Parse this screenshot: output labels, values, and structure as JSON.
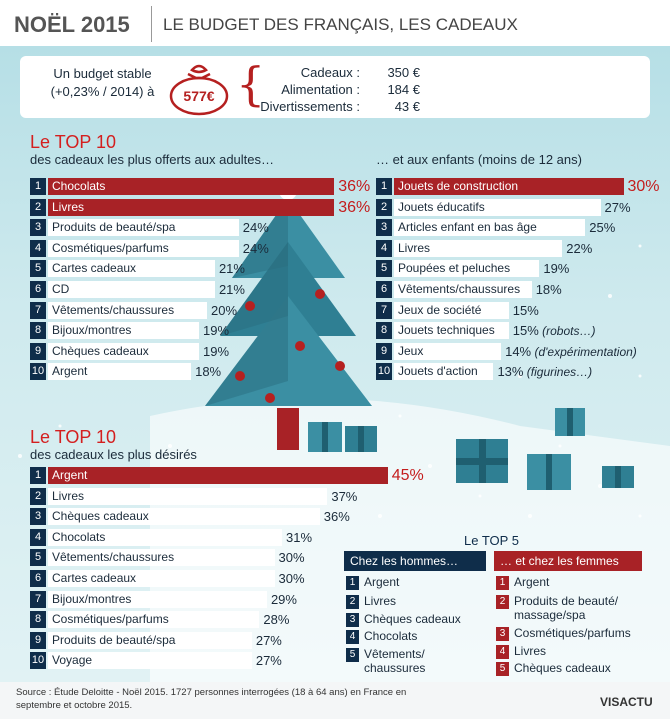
{
  "header": {
    "title": "NOËL 2015",
    "subtitle": "LE BUDGET DES FRANÇAIS, LES CADEAUX"
  },
  "budget": {
    "label": "Un budget stable\n(+0,23% / 2014) à",
    "amount": "577€",
    "items": [
      {
        "label": "Cadeaux :",
        "value": "350 €"
      },
      {
        "label": "Alimentation :",
        "value": "184 €"
      },
      {
        "label": "Divertissements :",
        "value": "43 €"
      }
    ]
  },
  "adults": {
    "title": "Le TOP 10",
    "subtitle": "des cadeaux les plus offerts aux adultes…",
    "items": [
      {
        "rank": "1",
        "label": "Chocolats",
        "value": 36,
        "display": "36%"
      },
      {
        "rank": "2",
        "label": "Livres",
        "value": 36,
        "display": "36%"
      },
      {
        "rank": "3",
        "label": "Produits de beauté/spa",
        "value": 24,
        "display": "24%"
      },
      {
        "rank": "4",
        "label": "Cosmétiques/parfums",
        "value": 24,
        "display": "24%"
      },
      {
        "rank": "5",
        "label": "Cartes cadeaux",
        "value": 21,
        "display": "21%"
      },
      {
        "rank": "6",
        "label": "CD",
        "value": 21,
        "display": "21%"
      },
      {
        "rank": "7",
        "label": "Vêtements/chaussures",
        "value": 20,
        "display": "20%"
      },
      {
        "rank": "8",
        "label": "Bijoux/montres",
        "value": 19,
        "display": "19%"
      },
      {
        "rank": "9",
        "label": "Chèques cadeaux",
        "value": 19,
        "display": "19%"
      },
      {
        "rank": "10",
        "label": "Argent",
        "value": 18,
        "display": "18%"
      }
    ]
  },
  "children": {
    "subtitle": "… et aux enfants (moins de 12 ans)",
    "items": [
      {
        "rank": "1",
        "label": "Jouets de construction",
        "value": 30,
        "display": "30%",
        "note": ""
      },
      {
        "rank": "2",
        "label": "Jouets éducatifs",
        "value": 27,
        "display": "27%",
        "note": ""
      },
      {
        "rank": "3",
        "label": "Articles enfant en bas âge",
        "value": 25,
        "display": "25%",
        "note": ""
      },
      {
        "rank": "4",
        "label": "Livres",
        "value": 22,
        "display": "22%",
        "note": ""
      },
      {
        "rank": "5",
        "label": "Poupées et peluches",
        "value": 19,
        "display": "19%",
        "note": ""
      },
      {
        "rank": "6",
        "label": "Vêtements/chaussures",
        "value": 18,
        "display": "18%",
        "note": ""
      },
      {
        "rank": "7",
        "label": "Jeux de société",
        "value": 15,
        "display": "15%",
        "note": ""
      },
      {
        "rank": "8",
        "label": "Jouets techniques",
        "value": 15,
        "display": "15%",
        "note": "(robots…)"
      },
      {
        "rank": "9",
        "label": "Jeux",
        "value": 14,
        "display": "14%",
        "note": "(d'expérimentation)"
      },
      {
        "rank": "10",
        "label": "Jouets d'action",
        "value": 13,
        "display": "13%",
        "note": "(figurines…)"
      }
    ]
  },
  "desired": {
    "title": "Le TOP 10",
    "subtitle": "des cadeaux les plus désirés",
    "items": [
      {
        "rank": "1",
        "label": "Argent",
        "value": 45,
        "display": "45%"
      },
      {
        "rank": "2",
        "label": "Livres",
        "value": 37,
        "display": "37%"
      },
      {
        "rank": "3",
        "label": "Chèques cadeaux",
        "value": 36,
        "display": "36%"
      },
      {
        "rank": "4",
        "label": "Chocolats",
        "value": 31,
        "display": "31%"
      },
      {
        "rank": "5",
        "label": "Vêtements/chaussures",
        "value": 30,
        "display": "30%"
      },
      {
        "rank": "6",
        "label": "Cartes cadeaux",
        "value": 30,
        "display": "30%"
      },
      {
        "rank": "7",
        "label": "Bijoux/montres",
        "value": 29,
        "display": "29%"
      },
      {
        "rank": "8",
        "label": "Cosmétiques/parfums",
        "value": 28,
        "display": "28%"
      },
      {
        "rank": "9",
        "label": "Produits de beauté/spa",
        "value": 27,
        "display": "27%"
      },
      {
        "rank": "10",
        "label": "Voyage",
        "value": 27,
        "display": "27%"
      }
    ]
  },
  "top5": {
    "title": "Le TOP 5",
    "men": {
      "heading": "Chez les hommes…",
      "items": [
        {
          "rank": "1",
          "label": "Argent"
        },
        {
          "rank": "2",
          "label": "Livres"
        },
        {
          "rank": "3",
          "label": "Chèques cadeaux"
        },
        {
          "rank": "4",
          "label": "Chocolats"
        },
        {
          "rank": "5",
          "label": "Vêtements/\nchaussures"
        }
      ]
    },
    "women": {
      "heading": "… et chez les femmes",
      "items": [
        {
          "rank": "1",
          "label": "Argent"
        },
        {
          "rank": "2",
          "label": "Produits de beauté/\nmassage/spa"
        },
        {
          "rank": "3",
          "label": "Cosmétiques/parfums"
        },
        {
          "rank": "4",
          "label": "Livres"
        },
        {
          "rank": "5",
          "label": "Chèques cadeaux"
        }
      ]
    }
  },
  "footer": {
    "source": "Source : Étude Deloitte - Noël 2015. 1727 personnes interrogées (18 à 64 ans) en France en septembre et octobre 2015.",
    "logo": "VISACTU"
  },
  "colors": {
    "navy": "#0f2d4a",
    "red": "#a82226",
    "teal": "#3b8fa3",
    "accent_text": "#c41d1d"
  },
  "chart_data": [
    {
      "type": "bar",
      "title": "Le TOP 10",
      "subtitle": "des cadeaux les plus offerts aux adultes…",
      "categories": [
        "Chocolats",
        "Livres",
        "Produits de beauté/spa",
        "Cosmétiques/parfums",
        "Cartes cadeaux",
        "CD",
        "Vêtements/chaussures",
        "Bijoux/montres",
        "Chèques cadeaux",
        "Argent"
      ],
      "values": [
        36,
        36,
        24,
        24,
        21,
        21,
        20,
        19,
        19,
        18
      ],
      "unit": "%"
    },
    {
      "type": "bar",
      "subtitle": "… et aux enfants (moins de 12 ans)",
      "categories": [
        "Jouets de construction",
        "Jouets éducatifs",
        "Articles enfant en bas âge",
        "Livres",
        "Poupées et peluches",
        "Vêtements/chaussures",
        "Jeux de société",
        "Jouets techniques",
        "Jeux",
        "Jouets d'action"
      ],
      "values": [
        30,
        27,
        25,
        22,
        19,
        18,
        15,
        15,
        14,
        13
      ],
      "unit": "%"
    },
    {
      "type": "bar",
      "title": "Le TOP 10",
      "subtitle": "des cadeaux les plus désirés",
      "categories": [
        "Argent",
        "Livres",
        "Chèques cadeaux",
        "Chocolats",
        "Vêtements/chaussures",
        "Cartes cadeaux",
        "Bijoux/montres",
        "Cosmétiques/parfums",
        "Produits de beauté/spa",
        "Voyage"
      ],
      "values": [
        45,
        37,
        36,
        31,
        30,
        30,
        29,
        28,
        27,
        27
      ],
      "unit": "%"
    }
  ]
}
